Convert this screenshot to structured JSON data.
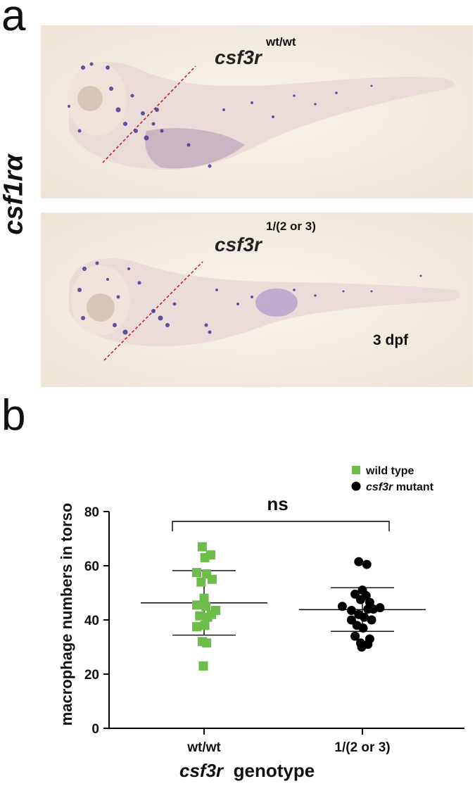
{
  "panel_a": {
    "letter": "a",
    "side_label": "csf1rα",
    "top_image": {
      "gene": "csf3r",
      "genotype": "wt/wt"
    },
    "bottom_image": {
      "gene": "csf3r",
      "genotype": "1/(2 or 3)",
      "stage": "3 dpf"
    }
  },
  "panel_b": {
    "letter": "b",
    "chart_data": {
      "type": "scatter",
      "ylabel": "macrophage numbers in torso",
      "xlabel_gene": "csf3r",
      "xlabel_suffix": "genotype",
      "categories": [
        "wt/wt",
        "1/(2 or 3)"
      ],
      "ylim": [
        0,
        80
      ],
      "yticks": [
        0,
        20,
        40,
        60,
        80
      ],
      "significance": "ns",
      "legend": [
        {
          "label": "wild type",
          "marker": "square",
          "color": "#6cbd4a"
        },
        {
          "label_gene": "csf3r",
          "label_suffix": " mutant",
          "marker": "circle",
          "color": "#000000"
        }
      ],
      "series": [
        {
          "category": "wt/wt",
          "marker": "square",
          "color": "#6cbd4a",
          "mean": 46.3,
          "sd_high": 58.2,
          "sd_low": 34.4,
          "points": [
            {
              "x": -0.05,
              "y": 67
            },
            {
              "x": 0.18,
              "y": 64
            },
            {
              "x": 0.02,
              "y": 63
            },
            {
              "x": -0.2,
              "y": 57.5
            },
            {
              "x": 0.07,
              "y": 57
            },
            {
              "x": -0.08,
              "y": 54
            },
            {
              "x": 0.22,
              "y": 55
            },
            {
              "x": 0.0,
              "y": 48
            },
            {
              "x": -0.2,
              "y": 45.5
            },
            {
              "x": 0.05,
              "y": 45
            },
            {
              "x": 0.32,
              "y": 43.5
            },
            {
              "x": 0.2,
              "y": 42
            },
            {
              "x": -0.12,
              "y": 41.5
            },
            {
              "x": 0.1,
              "y": 41
            },
            {
              "x": -0.2,
              "y": 37.5
            },
            {
              "x": 0.02,
              "y": 38
            },
            {
              "x": -0.05,
              "y": 32
            },
            {
              "x": 0.07,
              "y": 31.5
            },
            {
              "x": -0.02,
              "y": 23
            }
          ]
        },
        {
          "category": "1/(2 or 3)",
          "marker": "circle",
          "color": "#000000",
          "mean": 43.8,
          "sd_high": 51.9,
          "sd_low": 35.8,
          "points": [
            {
              "x": -0.1,
              "y": 61.5
            },
            {
              "x": 0.12,
              "y": 60.5
            },
            {
              "x": 0.0,
              "y": 51
            },
            {
              "x": -0.2,
              "y": 49.5
            },
            {
              "x": 0.1,
              "y": 49
            },
            {
              "x": -0.05,
              "y": 47.5
            },
            {
              "x": 0.2,
              "y": 46.5
            },
            {
              "x": -0.55,
              "y": 45
            },
            {
              "x": -0.3,
              "y": 43.5
            },
            {
              "x": 0.15,
              "y": 44
            },
            {
              "x": 0.48,
              "y": 44.5
            },
            {
              "x": 0.3,
              "y": 44
            },
            {
              "x": -0.1,
              "y": 42
            },
            {
              "x": 0.05,
              "y": 41
            },
            {
              "x": -0.3,
              "y": 40
            },
            {
              "x": 0.25,
              "y": 40
            },
            {
              "x": -0.15,
              "y": 38
            },
            {
              "x": 0.02,
              "y": 37
            },
            {
              "x": -0.2,
              "y": 34
            },
            {
              "x": 0.2,
              "y": 33
            },
            {
              "x": -0.05,
              "y": 31.5
            },
            {
              "x": 0.15,
              "y": 31
            },
            {
              "x": -0.02,
              "y": 30
            }
          ]
        }
      ]
    }
  }
}
